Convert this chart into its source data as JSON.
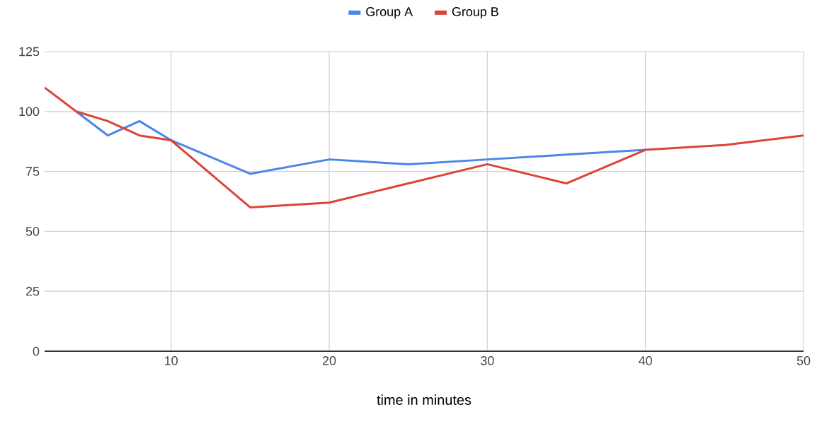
{
  "chart_data": {
    "type": "line",
    "xlabel": "time in minutes",
    "x": [
      2,
      4,
      6,
      8,
      10,
      15,
      20,
      25,
      30,
      35,
      40,
      45,
      50
    ],
    "series": [
      {
        "name": "Group A",
        "color": "#4a86e8",
        "values": [
          null,
          100,
          90,
          96,
          88,
          74,
          80,
          78,
          80,
          82,
          84,
          null,
          null
        ]
      },
      {
        "name": "Group B",
        "color": "#db4437",
        "values": [
          110,
          100,
          96,
          90,
          88,
          60,
          62,
          70,
          78,
          70,
          84,
          86,
          90
        ]
      }
    ],
    "xlim": [
      2,
      50
    ],
    "xticks": [
      10,
      20,
      30,
      40,
      50
    ],
    "ylim": [
      0,
      125
    ],
    "yticks": [
      0,
      25,
      50,
      75,
      100,
      125
    ],
    "grid": true,
    "legend": "top"
  }
}
